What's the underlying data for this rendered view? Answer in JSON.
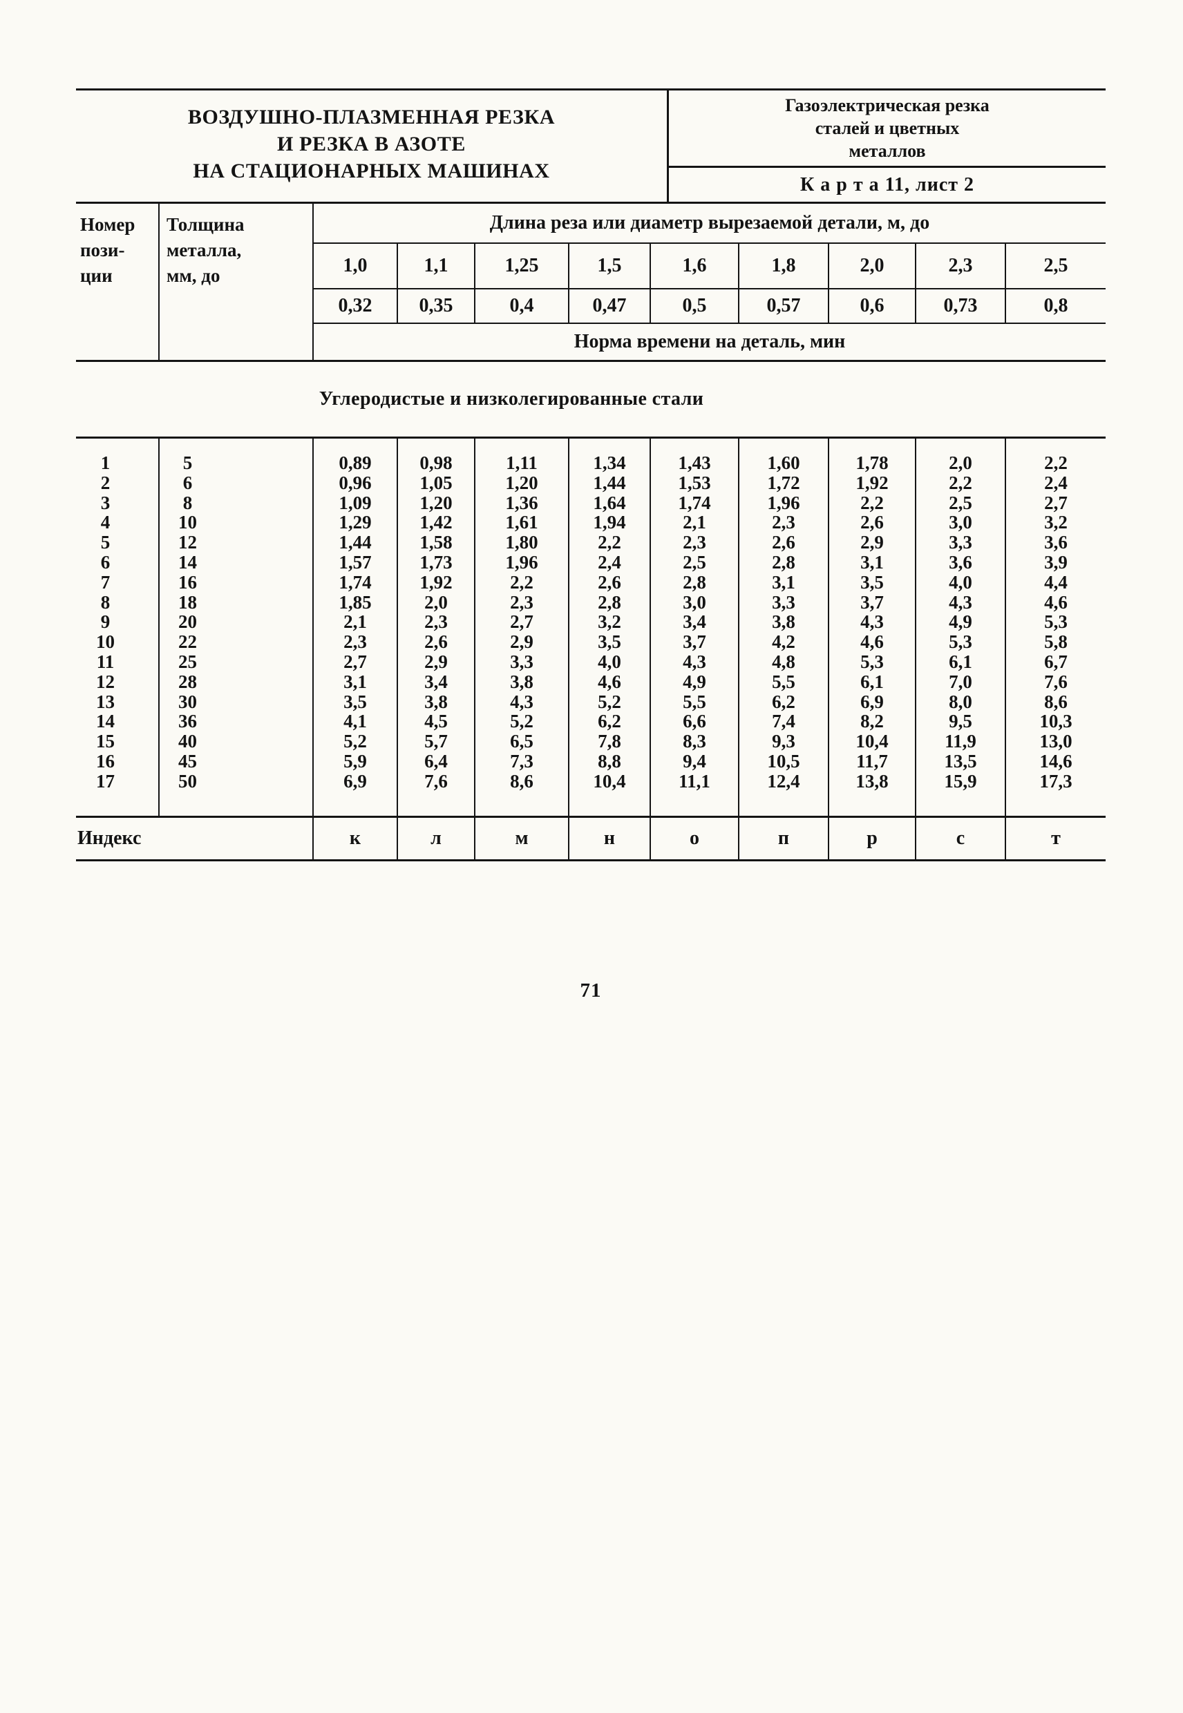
{
  "colors": {
    "paper": "#fbfaf5",
    "ink": "#141414"
  },
  "page": {
    "number": "71"
  },
  "header": {
    "title_lines": [
      "ВОЗДУШНО-ПЛАЗМЕННАЯ РЕЗКА",
      "И РЕЗКА В АЗОТЕ",
      "НА СТАЦИОНАРНЫХ МАШИНАХ"
    ],
    "subtitle_lines": [
      "Газоэлектрическая резка",
      "сталей и цветных",
      "металлов"
    ],
    "card_label": "К а р т а  11,  лист 2"
  },
  "table": {
    "col_position_lines": [
      "Номер",
      "пози-",
      "ции"
    ],
    "col_thickness_lines": [
      "Толщина",
      "металла,",
      "мм, до"
    ],
    "span_header": "Длина реза или диаметр вырезаемой детали, м, до",
    "length_values": [
      "1,0",
      "1,1",
      "1,25",
      "1,5",
      "1,6",
      "1,8",
      "2,0",
      "2,3",
      "2,5"
    ],
    "length_values_2": [
      "0,32",
      "0,35",
      "0,4",
      "0,47",
      "0,5",
      "0,57",
      "0,6",
      "0,73",
      "0,8"
    ],
    "norm_header": "Норма времени на деталь, мин",
    "section_title": "Углеродистые и низколегированные стали",
    "rows": [
      {
        "position": "1",
        "thickness": "5",
        "values": [
          "0,89",
          "0,98",
          "1,11",
          "1,34",
          "1,43",
          "1,60",
          "1,78",
          "2,0",
          "2,2"
        ]
      },
      {
        "position": "2",
        "thickness": "6",
        "values": [
          "0,96",
          "1,05",
          "1,20",
          "1,44",
          "1,53",
          "1,72",
          "1,92",
          "2,2",
          "2,4"
        ]
      },
      {
        "position": "3",
        "thickness": "8",
        "values": [
          "1,09",
          "1,20",
          "1,36",
          "1,64",
          "1,74",
          "1,96",
          "2,2",
          "2,5",
          "2,7"
        ]
      },
      {
        "position": "4",
        "thickness": "10",
        "values": [
          "1,29",
          "1,42",
          "1,61",
          "1,94",
          "2,1",
          "2,3",
          "2,6",
          "3,0",
          "3,2"
        ]
      },
      {
        "position": "5",
        "thickness": "12",
        "values": [
          "1,44",
          "1,58",
          "1,80",
          "2,2",
          "2,3",
          "2,6",
          "2,9",
          "3,3",
          "3,6"
        ]
      },
      {
        "position": "6",
        "thickness": "14",
        "values": [
          "1,57",
          "1,73",
          "1,96",
          "2,4",
          "2,5",
          "2,8",
          "3,1",
          "3,6",
          "3,9"
        ]
      },
      {
        "position": "7",
        "thickness": "16",
        "values": [
          "1,74",
          "1,92",
          "2,2",
          "2,6",
          "2,8",
          "3,1",
          "3,5",
          "4,0",
          "4,4"
        ]
      },
      {
        "position": "8",
        "thickness": "18",
        "values": [
          "1,85",
          "2,0",
          "2,3",
          "2,8",
          "3,0",
          "3,3",
          "3,7",
          "4,3",
          "4,6"
        ]
      },
      {
        "position": "9",
        "thickness": "20",
        "values": [
          "2,1",
          "2,3",
          "2,7",
          "3,2",
          "3,4",
          "3,8",
          "4,3",
          "4,9",
          "5,3"
        ]
      },
      {
        "position": "10",
        "thickness": "22",
        "values": [
          "2,3",
          "2,6",
          "2,9",
          "3,5",
          "3,7",
          "4,2",
          "4,6",
          "5,3",
          "5,8"
        ]
      },
      {
        "position": "11",
        "thickness": "25",
        "values": [
          "2,7",
          "2,9",
          "3,3",
          "4,0",
          "4,3",
          "4,8",
          "5,3",
          "6,1",
          "6,7"
        ]
      },
      {
        "position": "12",
        "thickness": "28",
        "values": [
          "3,1",
          "3,4",
          "3,8",
          "4,6",
          "4,9",
          "5,5",
          "6,1",
          "7,0",
          "7,6"
        ]
      },
      {
        "position": "13",
        "thickness": "30",
        "values": [
          "3,5",
          "3,8",
          "4,3",
          "5,2",
          "5,5",
          "6,2",
          "6,9",
          "8,0",
          "8,6"
        ]
      },
      {
        "position": "14",
        "thickness": "36",
        "values": [
          "4,1",
          "4,5",
          "5,2",
          "6,2",
          "6,6",
          "7,4",
          "8,2",
          "9,5",
          "10,3"
        ]
      },
      {
        "position": "15",
        "thickness": "40",
        "values": [
          "5,2",
          "5,7",
          "6,5",
          "7,8",
          "8,3",
          "9,3",
          "10,4",
          "11,9",
          "13,0"
        ]
      },
      {
        "position": "16",
        "thickness": "45",
        "values": [
          "5,9",
          "6,4",
          "7,3",
          "8,8",
          "9,4",
          "10,5",
          "11,7",
          "13,5",
          "14,6"
        ]
      },
      {
        "position": "17",
        "thickness": "50",
        "values": [
          "6,9",
          "7,6",
          "8,6",
          "10,4",
          "11,1",
          "12,4",
          "13,8",
          "15,9",
          "17,3"
        ]
      }
    ],
    "index_label": "Индекс",
    "index_values": [
      "к",
      "л",
      "м",
      "н",
      "о",
      "п",
      "р",
      "с",
      "т"
    ]
  }
}
